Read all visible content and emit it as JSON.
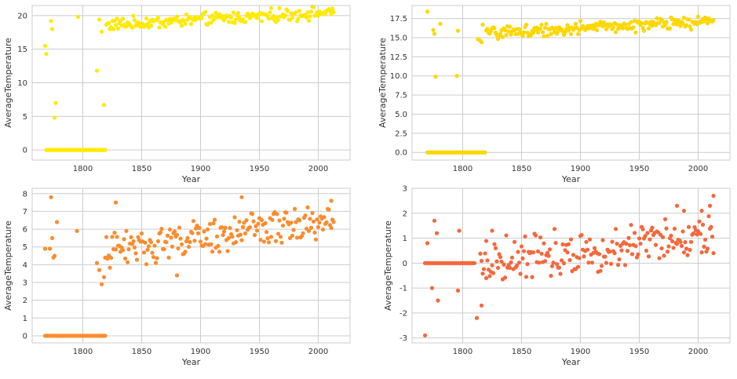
{
  "chart_data": [
    {
      "type": "scatter",
      "title": "",
      "xlabel": "Year",
      "ylabel": "AverageTemperature",
      "xlim": [
        1757,
        2027
      ],
      "ylim": [
        -1.5,
        21.5
      ],
      "xticks": [
        1800,
        1850,
        1900,
        1950,
        2000
      ],
      "yticks": [
        0,
        5,
        10,
        15,
        20
      ],
      "ytick_decimals": 0,
      "grid": true,
      "color": "#ffea00",
      "anchors": [
        [
          1768,
          15.5
        ],
        [
          1769,
          14.3
        ],
        [
          1773,
          19.2
        ],
        [
          1774,
          18.0
        ],
        [
          1776,
          4.8
        ],
        [
          1777,
          7.0
        ],
        [
          1796,
          19.8
        ],
        [
          1812,
          11.8
        ],
        [
          1814,
          19.4
        ],
        [
          1816,
          17.6
        ],
        [
          1818,
          6.7
        ]
      ],
      "segments": [
        {
          "from": 1769,
          "to": 1819,
          "base": 0,
          "amp": 0,
          "noise": 0
        },
        {
          "from": 1820,
          "to": 2013,
          "base": 18.6,
          "slope": 0.01,
          "amp": 0.7,
          "noise": 0.45
        }
      ]
    },
    {
      "type": "scatter",
      "title": "",
      "xlabel": "Year",
      "ylabel": "AverageTemperature",
      "xlim": [
        1757,
        2027
      ],
      "ylim": [
        -1.0,
        19.2
      ],
      "xticks": [
        1800,
        1850,
        1900,
        1950,
        2000
      ],
      "yticks": [
        0,
        2.5,
        5,
        7.5,
        10,
        12.5,
        15,
        17.5
      ],
      "ytick_decimals": 1,
      "grid": true,
      "color": "#ffd700",
      "anchors": [
        [
          1770,
          18.4
        ],
        [
          1775,
          16.0
        ],
        [
          1776,
          15.5
        ],
        [
          1777,
          9.9
        ],
        [
          1781,
          16.8
        ],
        [
          1795,
          10.0
        ],
        [
          1796,
          15.9
        ],
        [
          1813,
          14.8
        ],
        [
          1815,
          14.6
        ],
        [
          1816,
          14.4
        ],
        [
          1817,
          16.7
        ]
      ],
      "segments": [
        {
          "from": 1770,
          "to": 1819,
          "base": 0,
          "amp": 0,
          "noise": 0
        },
        {
          "from": 1820,
          "to": 2013,
          "base": 15.6,
          "slope": 0.008,
          "amp": 0.6,
          "noise": 0.4
        }
      ]
    },
    {
      "type": "scatter",
      "title": "",
      "xlabel": "Year",
      "ylabel": "AverageTemperature",
      "xlim": [
        1757,
        2027
      ],
      "ylim": [
        -0.4,
        8.3
      ],
      "xticks": [
        1800,
        1850,
        1900,
        1950,
        2000
      ],
      "yticks": [
        0,
        1,
        2,
        3,
        4,
        5,
        6,
        7,
        8
      ],
      "ytick_decimals": 0,
      "grid": true,
      "color": "#fb8c2e",
      "anchors": [
        [
          1768,
          4.9
        ],
        [
          1772,
          4.9
        ],
        [
          1773,
          7.8
        ],
        [
          1774,
          5.5
        ],
        [
          1775,
          4.4
        ],
        [
          1776,
          4.5
        ],
        [
          1778,
          6.4
        ],
        [
          1795,
          5.9
        ],
        [
          1812,
          4.1
        ],
        [
          1814,
          3.7
        ],
        [
          1816,
          2.9
        ],
        [
          1818,
          3.3
        ],
        [
          1819,
          4.4
        ],
        [
          1828,
          7.5
        ],
        [
          1880,
          3.4
        ],
        [
          1935,
          7.8
        ],
        [
          2011,
          7.6
        ]
      ],
      "segments": [
        {
          "from": 1768,
          "to": 1819,
          "base": 0,
          "amp": 0,
          "noise": 0
        },
        {
          "from": 1820,
          "to": 2013,
          "base": 4.8,
          "slope": 0.009,
          "amp": 0.8,
          "noise": 0.35
        }
      ]
    },
    {
      "type": "scatter",
      "title": "",
      "xlabel": "Year",
      "ylabel": "AverageTemperature",
      "xlim": [
        1757,
        2027
      ],
      "ylim": [
        -3.2,
        3.0
      ],
      "xticks": [
        1800,
        1850,
        1900,
        1950,
        2000
      ],
      "yticks": [
        -3,
        -2,
        -1,
        0,
        1,
        2,
        3
      ],
      "ytick_decimals": 0,
      "grid": true,
      "color": "#f4683c",
      "anchors": [
        [
          1768,
          -2.9
        ],
        [
          1770,
          0.8
        ],
        [
          1774,
          -1.0
        ],
        [
          1776,
          1.7
        ],
        [
          1778,
          1.2
        ],
        [
          1779,
          -1.5
        ],
        [
          1796,
          -1.1
        ],
        [
          1797,
          1.3
        ],
        [
          1812,
          -2.2
        ],
        [
          1816,
          -1.7
        ],
        [
          1820,
          -0.6
        ],
        [
          1825,
          1.3
        ],
        [
          1982,
          2.3
        ],
        [
          1988,
          2.1
        ],
        [
          2003,
          2.1
        ],
        [
          2010,
          2.3
        ],
        [
          2013,
          2.7
        ]
      ],
      "segments": [
        {
          "from": 1768,
          "to": 1810,
          "base": 0,
          "amp": 0,
          "noise": 0
        },
        {
          "from": 1815,
          "to": 2013,
          "base": 0.1,
          "slope": 0.005,
          "amp": 0.7,
          "noise": 0.35
        }
      ]
    }
  ]
}
